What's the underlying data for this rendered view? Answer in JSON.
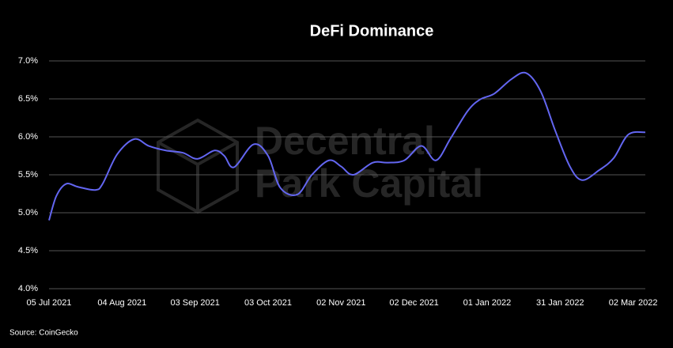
{
  "chart_data": {
    "type": "line",
    "title": "DeFi Dominance",
    "source": "Source: CoinGecko",
    "watermark": [
      "Decentral",
      "Park Capital"
    ],
    "x": [
      "2021-07-05",
      "2021-07-08",
      "2021-07-12",
      "2021-07-17",
      "2021-07-24",
      "2021-07-27",
      "2021-08-02",
      "2021-08-09",
      "2021-08-15",
      "2021-08-22",
      "2021-08-29",
      "2021-09-04",
      "2021-09-11",
      "2021-09-15",
      "2021-09-19",
      "2021-09-27",
      "2021-10-03",
      "2021-10-08",
      "2021-10-15",
      "2021-10-21",
      "2021-10-28",
      "2021-11-02",
      "2021-11-07",
      "2021-11-15",
      "2021-11-21",
      "2021-11-28",
      "2021-12-05",
      "2021-12-11",
      "2021-12-17",
      "2021-12-24",
      "2021-12-29",
      "2022-01-04",
      "2022-01-11",
      "2022-01-17",
      "2022-01-23",
      "2022-01-29",
      "2022-02-04",
      "2022-02-09",
      "2022-02-16",
      "2022-02-22",
      "2022-02-28",
      "2022-03-07"
    ],
    "series": [
      {
        "color": "#6366f1",
        "values": [
          4.9,
          5.22,
          5.38,
          5.34,
          5.3,
          5.38,
          5.77,
          5.97,
          5.88,
          5.82,
          5.79,
          5.71,
          5.82,
          5.75,
          5.6,
          5.9,
          5.75,
          5.33,
          5.24,
          5.5,
          5.69,
          5.61,
          5.5,
          5.66,
          5.66,
          5.69,
          5.88,
          5.69,
          5.98,
          6.34,
          6.49,
          6.57,
          6.76,
          6.84,
          6.6,
          6.08,
          5.61,
          5.43,
          5.56,
          5.72,
          6.03,
          6.06
        ]
      }
    ],
    "xlim": [
      "2021-07-05",
      "2022-03-07"
    ],
    "xticks": [
      {
        "value": "2021-07-05",
        "label": "05 Jul 2021"
      },
      {
        "value": "2021-08-04",
        "label": "04 Aug 2021"
      },
      {
        "value": "2021-09-03",
        "label": "03 Sep 2021"
      },
      {
        "value": "2021-10-03",
        "label": "03 Oct 2021"
      },
      {
        "value": "2021-11-02",
        "label": "02 Nov 2021"
      },
      {
        "value": "2021-12-02",
        "label": "02 Dec 2021"
      },
      {
        "value": "2022-01-01",
        "label": "01 Jan 2022"
      },
      {
        "value": "2022-01-31",
        "label": "31 Jan 2022"
      },
      {
        "value": "2022-03-02",
        "label": "02 Mar 2022"
      }
    ],
    "ylim": [
      4,
      7
    ],
    "yticks": [
      {
        "value": 4,
        "label": "4.0%"
      },
      {
        "value": 4.5,
        "label": "4.5%"
      },
      {
        "value": 5,
        "label": "5.0%"
      },
      {
        "value": 5.5,
        "label": "5.5%"
      },
      {
        "value": 6,
        "label": "6.0%"
      },
      {
        "value": 6.5,
        "label": "6.5%"
      },
      {
        "value": 7,
        "label": "7.0%"
      }
    ],
    "grid": true
  }
}
